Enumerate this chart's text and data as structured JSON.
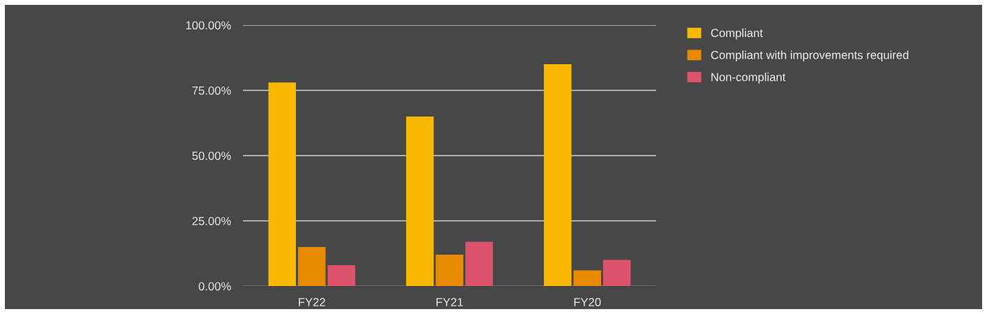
{
  "chart_data": {
    "type": "bar",
    "categories": [
      "FY22",
      "FY21",
      "FY20"
    ],
    "series": [
      {
        "name": "Compliant",
        "color": "#fbb800",
        "values": [
          78,
          65,
          85
        ]
      },
      {
        "name": "Compliant with improvements required",
        "color": "#e88b00",
        "values": [
          15,
          12,
          6
        ]
      },
      {
        "name": "Non-compliant",
        "color": "#dc546c",
        "values": [
          8,
          17,
          10
        ]
      }
    ],
    "ylim": [
      0,
      100
    ],
    "yticks": [
      {
        "value": 0,
        "label": "0.00%"
      },
      {
        "value": 25,
        "label": "25.00%"
      },
      {
        "value": 50,
        "label": "50.00%"
      },
      {
        "value": 75,
        "label": "75.00%"
      },
      {
        "value": 100,
        "label": "100.00%"
      }
    ],
    "grid": "y",
    "legend": "top right"
  }
}
